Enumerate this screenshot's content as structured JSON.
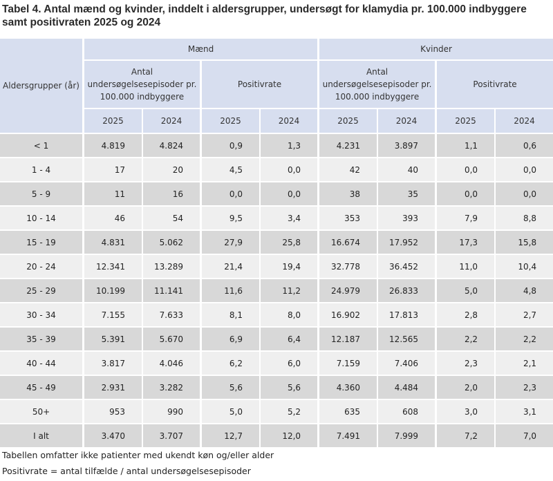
{
  "title": "Tabel 4. Antal mænd og kvinder, inddelt i aldersgrupper, undersøgt for klamydia pr. 100.000 indbyggere samt positivraten 2025 og 2024",
  "header": {
    "age_label": "Aldersgrupper (år)",
    "men": "Mænd",
    "women": "Kvinder",
    "episodes": "Antal undersøgelsesepisoder pr. 100.000 indbyggere",
    "positive_rate": "Positivrate",
    "years": [
      "2025",
      "2024"
    ]
  },
  "rows": [
    {
      "age": "< 1",
      "values": [
        "4.819",
        "4.824",
        "0,9",
        "1,3",
        "4.231",
        "3.897",
        "1,1",
        "0,6"
      ]
    },
    {
      "age": "1 - 4",
      "values": [
        "17",
        "20",
        "4,5",
        "0,0",
        "42",
        "40",
        "0,0",
        "0,0"
      ]
    },
    {
      "age": "5 - 9",
      "values": [
        "11",
        "16",
        "0,0",
        "0,0",
        "38",
        "35",
        "0,0",
        "0,0"
      ]
    },
    {
      "age": "10 - 14",
      "values": [
        "46",
        "54",
        "9,5",
        "3,4",
        "353",
        "393",
        "7,9",
        "8,8"
      ]
    },
    {
      "age": "15 - 19",
      "values": [
        "4.831",
        "5.062",
        "27,9",
        "25,8",
        "16.674",
        "17.952",
        "17,3",
        "15,8"
      ]
    },
    {
      "age": "20 - 24",
      "values": [
        "12.341",
        "13.289",
        "21,4",
        "19,4",
        "32.778",
        "36.452",
        "11,0",
        "10,4"
      ]
    },
    {
      "age": "25 - 29",
      "values": [
        "10.199",
        "11.141",
        "11,6",
        "11,2",
        "24.979",
        "26.833",
        "5,0",
        "4,8"
      ]
    },
    {
      "age": "30 - 34",
      "values": [
        "7.155",
        "7.633",
        "8,1",
        "8,0",
        "16.902",
        "17.813",
        "2,8",
        "2,7"
      ]
    },
    {
      "age": "35 - 39",
      "values": [
        "5.391",
        "5.670",
        "6,9",
        "6,4",
        "12.187",
        "12.565",
        "2,2",
        "2,2"
      ]
    },
    {
      "age": "40 - 44",
      "values": [
        "3.817",
        "4.046",
        "6,2",
        "6,0",
        "7.159",
        "7.406",
        "2,3",
        "2,1"
      ]
    },
    {
      "age": "45 - 49",
      "values": [
        "2.931",
        "3.282",
        "5,6",
        "5,6",
        "4.360",
        "4.484",
        "2,0",
        "2,3"
      ]
    },
    {
      "age": "50+",
      "values": [
        "953",
        "990",
        "5,0",
        "5,2",
        "635",
        "608",
        "3,0",
        "3,1"
      ]
    },
    {
      "age": "I alt",
      "values": [
        "3.470",
        "3.707",
        "12,7",
        "12,0",
        "7.491",
        "7.999",
        "7,2",
        "7,0"
      ]
    }
  ],
  "footnotes": [
    "Tabellen omfatter ikke patienter med ukendt køn og/eller alder",
    "Positivrate = antal tilfælde / antal undersøgelsesepisoder"
  ],
  "colors": {
    "header_bg": "#d7deef",
    "row_dark": "#d8d8d8",
    "row_light": "#efefef"
  }
}
